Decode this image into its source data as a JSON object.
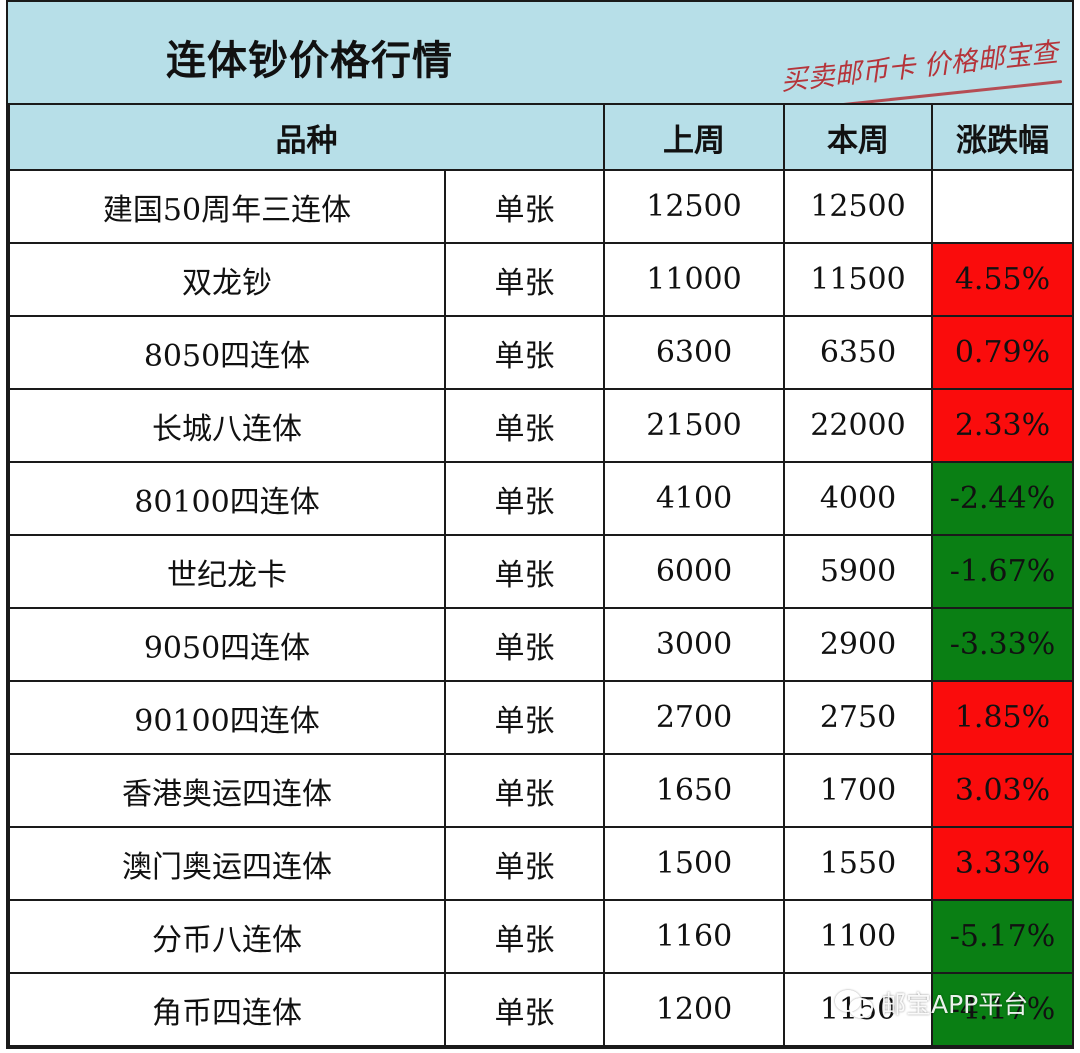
{
  "title": "连体钞价格行情",
  "slogan": "买卖邮币卡 价格邮宝查",
  "headers": {
    "variety": "品种",
    "last_week": "上周",
    "this_week": "本周",
    "change": "涨跌幅"
  },
  "rows": [
    {
      "name": "建国50周年三连体",
      "unit": "单张",
      "last": "12500",
      "this": "12500",
      "change": "",
      "trend": "flat"
    },
    {
      "name": "双龙钞",
      "unit": "单张",
      "last": "11000",
      "this": "11500",
      "change": "4.55%",
      "trend": "up"
    },
    {
      "name": "8050四连体",
      "unit": "单张",
      "last": "6300",
      "this": "6350",
      "change": "0.79%",
      "trend": "up"
    },
    {
      "name": "长城八连体",
      "unit": "单张",
      "last": "21500",
      "this": "22000",
      "change": "2.33%",
      "trend": "up"
    },
    {
      "name": "80100四连体",
      "unit": "单张",
      "last": "4100",
      "this": "4000",
      "change": "-2.44%",
      "trend": "down"
    },
    {
      "name": "世纪龙卡",
      "unit": "单张",
      "last": "6000",
      "this": "5900",
      "change": "-1.67%",
      "trend": "down"
    },
    {
      "name": "9050四连体",
      "unit": "单张",
      "last": "3000",
      "this": "2900",
      "change": "-3.33%",
      "trend": "down"
    },
    {
      "name": "90100四连体",
      "unit": "单张",
      "last": "2700",
      "this": "2750",
      "change": "1.85%",
      "trend": "up"
    },
    {
      "name": "香港奥运四连体",
      "unit": "单张",
      "last": "1650",
      "this": "1700",
      "change": "3.03%",
      "trend": "up"
    },
    {
      "name": "澳门奥运四连体",
      "unit": "单张",
      "last": "1500",
      "this": "1550",
      "change": "3.33%",
      "trend": "up"
    },
    {
      "name": "分币八连体",
      "unit": "单张",
      "last": "1160",
      "this": "1100",
      "change": "-5.17%",
      "trend": "down"
    },
    {
      "name": "角币四连体",
      "unit": "单张",
      "last": "1200",
      "this": "1150",
      "change": "-4.17%",
      "trend": "down"
    }
  ],
  "watermark": "邮宝APP平台",
  "colors": {
    "header_bg": "#b7dfe8",
    "up": "#fa0c0c",
    "down": "#0a7f14",
    "slogan": "#b5343a"
  }
}
